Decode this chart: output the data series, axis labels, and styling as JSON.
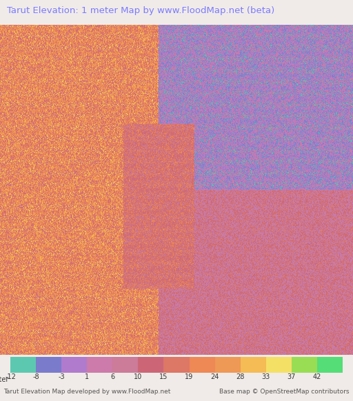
{
  "title": "Tarut Elevation: 1 meter Map by www.FloodMap.net (beta)",
  "title_color": "#7b7bff",
  "title_bg": "#ede8e8",
  "colorbar_labels": [
    -12,
    -8,
    -3,
    1,
    6,
    10,
    15,
    19,
    24,
    28,
    33,
    37,
    42
  ],
  "colorbar_colors": [
    "#5cc8b0",
    "#7b7bcc",
    "#b07bcc",
    "#cc7baa",
    "#cc7b99",
    "#cc6677",
    "#dd7766",
    "#ee8855",
    "#ee9955",
    "#f5bb55",
    "#f5e066",
    "#99dd55",
    "#55dd77"
  ],
  "bottom_text_left": "Tarut Elevation Map developed by www.FloodMap.net",
  "bottom_text_right": "Base map © OpenStreetMap contributors",
  "map_bg_color": "#d4a0d4",
  "footer_bg": "#f0ebe8",
  "footer_text_color": "#555555",
  "label_text": "meter",
  "fig_width": 5.12,
  "fig_height": 5.82,
  "dpi": 100
}
